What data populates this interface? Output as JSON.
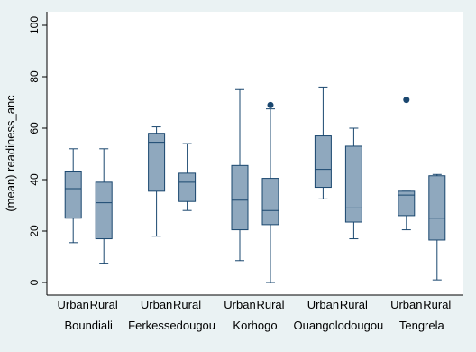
{
  "chart_data": {
    "type": "box",
    "ylabel": "(mean) readiness_anc",
    "ylim": [
      0,
      100
    ],
    "yticks": [
      0,
      20,
      40,
      60,
      80,
      100
    ],
    "grid": false,
    "colors": {
      "background": "#eaf2f3",
      "plot_background": "#ffffff",
      "box_fill": "#8fa8be",
      "box_stroke": "#1a476f",
      "outlier": "#1a476f"
    },
    "groups": [
      {
        "name": "Boundiali",
        "boxes": [
          {
            "label": "Urban",
            "min": 15.5,
            "q1": 25,
            "median": 36.5,
            "q3": 43,
            "max": 52,
            "outliers": []
          },
          {
            "label": "Rural",
            "min": 7.5,
            "q1": 17,
            "median": 31,
            "q3": 39,
            "max": 52,
            "outliers": []
          }
        ]
      },
      {
        "name": "Ferkessedougou",
        "boxes": [
          {
            "label": "Urban",
            "min": 18,
            "q1": 35.5,
            "median": 54.5,
            "q3": 58,
            "max": 60.5,
            "outliers": []
          },
          {
            "label": "Rural",
            "min": 28,
            "q1": 31.5,
            "median": 39,
            "q3": 42.5,
            "max": 54,
            "outliers": []
          }
        ]
      },
      {
        "name": "Korhogo",
        "boxes": [
          {
            "label": "Urban",
            "min": 8.5,
            "q1": 20.5,
            "median": 32,
            "q3": 45.5,
            "max": 75,
            "outliers": []
          },
          {
            "label": "Rural",
            "min": 0,
            "q1": 22.5,
            "median": 28,
            "q3": 40.5,
            "max": 67.5,
            "outliers": [
              69
            ]
          }
        ]
      },
      {
        "name": "Ouangolodougou",
        "boxes": [
          {
            "label": "Urban",
            "min": 32.5,
            "q1": 37,
            "median": 44,
            "q3": 57,
            "max": 76,
            "outliers": []
          },
          {
            "label": "Rural",
            "min": 17,
            "q1": 23.5,
            "median": 29,
            "q3": 53,
            "max": 60,
            "outliers": []
          }
        ]
      },
      {
        "name": "Tengrela",
        "boxes": [
          {
            "label": "Urban",
            "min": 20.5,
            "q1": 26,
            "median": 34,
            "q3": 35.5,
            "max": 35.5,
            "outliers": [
              71
            ]
          },
          {
            "label": "Rural",
            "min": 1,
            "q1": 16.5,
            "median": 25,
            "q3": 41.5,
            "max": 42,
            "outliers": []
          }
        ]
      }
    ]
  }
}
